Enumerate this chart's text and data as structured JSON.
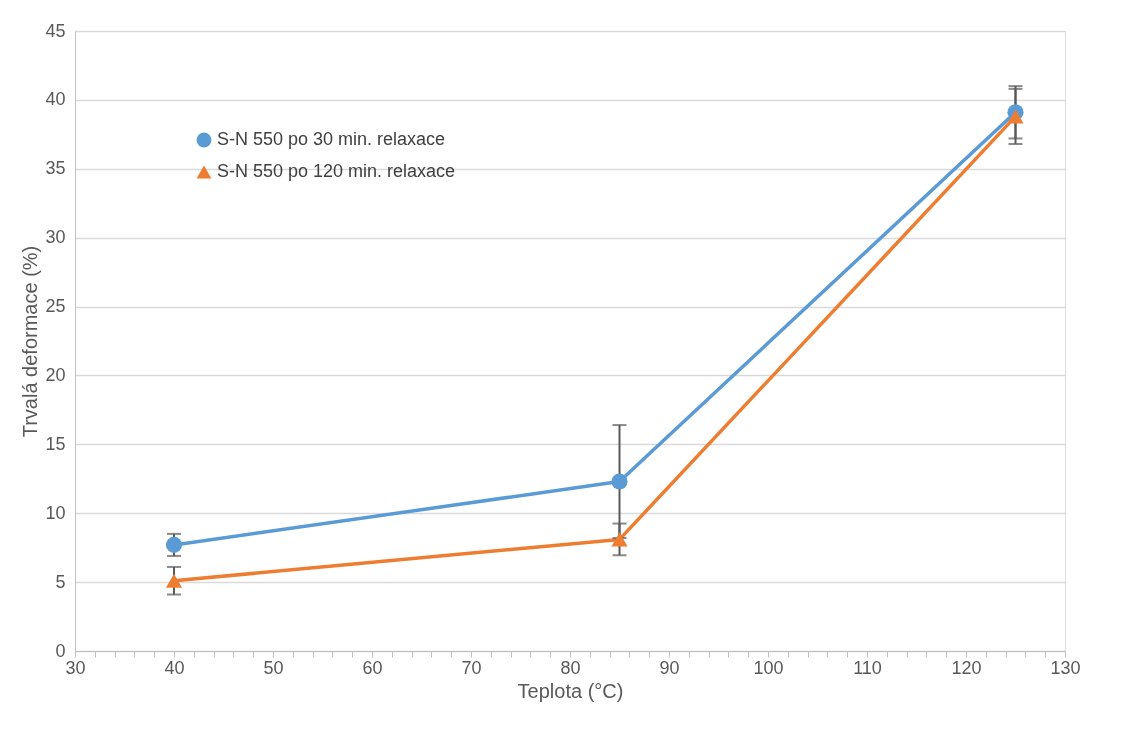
{
  "chart_data": {
    "type": "line",
    "xlabel": "Teplota (°C)",
    "ylabel": "Trvalá deformace (%)",
    "x": [
      40,
      85,
      125
    ],
    "series": [
      {
        "name": "S-N 550  po 30 min. relaxace",
        "color": "#5b9bd5",
        "marker": "circle",
        "values": [
          7.7,
          12.3,
          39.1
        ],
        "errors": [
          0.8,
          4.1,
          1.9
        ]
      },
      {
        "name": "S-N 550 po 120 min. relaxace",
        "color": "#ed7d31",
        "marker": "triangle",
        "values": [
          5.1,
          8.1,
          38.8
        ],
        "errors": [
          1.0,
          1.15,
          2.0
        ]
      }
    ],
    "xlim": [
      30,
      130
    ],
    "xticks": [
      30,
      {
        "value": 32,
        "label": null
      },
      {
        "value": 34,
        "label": null
      },
      {
        "value": 36,
        "label": null
      },
      {
        "value": 38,
        "label": null
      },
      40,
      {
        "value": 42,
        "label": null
      },
      {
        "value": 44,
        "label": null
      },
      {
        "value": 46,
        "label": null
      },
      {
        "value": 48,
        "label": null
      },
      50,
      {
        "value": 52,
        "label": null
      },
      {
        "value": 54,
        "label": null
      },
      {
        "value": 56,
        "label": null
      },
      {
        "value": 58,
        "label": null
      },
      60,
      {
        "value": 62,
        "label": null
      },
      {
        "value": 64,
        "label": null
      },
      {
        "value": 66,
        "label": null
      },
      {
        "value": 68,
        "label": null
      },
      70,
      {
        "value": 72,
        "label": null
      },
      {
        "value": 74,
        "label": null
      },
      {
        "value": 76,
        "label": null
      },
      {
        "value": 78,
        "label": null
      },
      80,
      {
        "value": 82,
        "label": null
      },
      {
        "value": 84,
        "label": null
      },
      {
        "value": 86,
        "label": null
      },
      {
        "value": 88,
        "label": null
      },
      90,
      {
        "value": 92,
        "label": null
      },
      {
        "value": 94,
        "label": null
      },
      {
        "value": 96,
        "label": null
      },
      {
        "value": 98,
        "label": null
      },
      100,
      {
        "value": 102,
        "label": null
      },
      {
        "value": 104,
        "label": null
      },
      {
        "value": 106,
        "label": null
      },
      {
        "value": 108,
        "label": null
      },
      110,
      {
        "value": 112,
        "label": null
      },
      {
        "value": 114,
        "label": null
      },
      {
        "value": 116,
        "label": null
      },
      {
        "value": 118,
        "label": null
      },
      120,
      {
        "value": 122,
        "label": null
      },
      {
        "value": 124,
        "label": null
      },
      {
        "value": 126,
        "label": null
      },
      {
        "value": 128,
        "label": null
      },
      130
    ],
    "ylim": [
      0,
      45
    ],
    "yticks": [
      0,
      5,
      10,
      15,
      20,
      25,
      30,
      35,
      40,
      45
    ],
    "grid": "y",
    "legend": "top left",
    "line_style": "solid"
  }
}
